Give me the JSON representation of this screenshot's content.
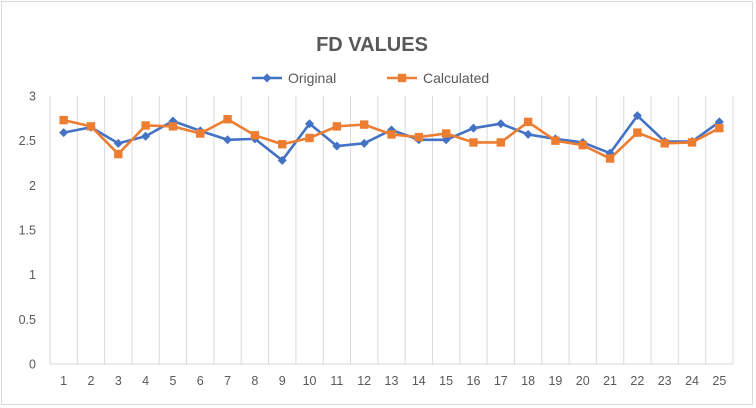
{
  "chart_data": {
    "type": "line",
    "title": "FD VALUES",
    "xlabel": "",
    "ylabel": "",
    "categories": [
      "1",
      "2",
      "3",
      "4",
      "5",
      "6",
      "7",
      "8",
      "9",
      "10",
      "11",
      "12",
      "13",
      "14",
      "15",
      "16",
      "17",
      "18",
      "19",
      "20",
      "21",
      "22",
      "23",
      "24",
      "25"
    ],
    "ylim": [
      0,
      3
    ],
    "yticks": [
      "0",
      "0.5",
      "1",
      "1.5",
      "2",
      "2.5",
      "3"
    ],
    "grid": "vertical",
    "legend": "top",
    "series": [
      {
        "name": "Original",
        "color": "#4472c4",
        "marker": "diamond",
        "values": [
          2.59,
          2.65,
          2.47,
          2.55,
          2.72,
          2.61,
          2.51,
          2.52,
          2.28,
          2.69,
          2.44,
          2.47,
          2.62,
          2.51,
          2.51,
          2.64,
          2.69,
          2.57,
          2.52,
          2.48,
          2.36,
          2.78,
          2.49,
          2.49,
          2.71
        ]
      },
      {
        "name": "Calculated",
        "color": "#ed7d31",
        "marker": "square",
        "values": [
          2.73,
          2.66,
          2.35,
          2.67,
          2.66,
          2.58,
          2.74,
          2.56,
          2.46,
          2.53,
          2.66,
          2.68,
          2.57,
          2.54,
          2.58,
          2.48,
          2.48,
          2.71,
          2.5,
          2.45,
          2.3,
          2.59,
          2.47,
          2.48,
          2.64
        ]
      }
    ],
    "gridline_color": "#d9d9d9"
  }
}
